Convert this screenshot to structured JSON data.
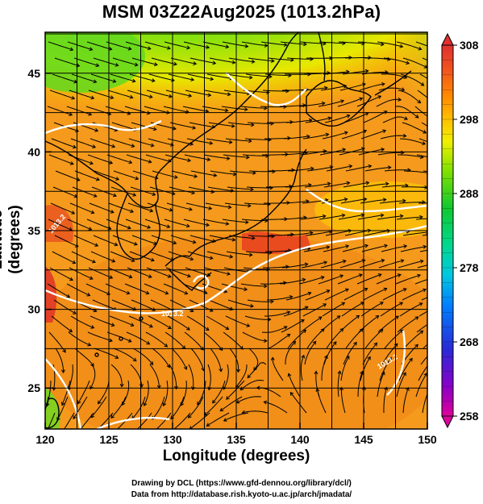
{
  "title": "MSM 03Z22Aug2025 (1013.2hPa)",
  "chart_data": {
    "type": "heatmap",
    "title": "MSM 03Z22Aug2025 (1013.2hPa)",
    "xlabel": "Longitude (degrees)",
    "ylabel": "Latitude  (degrees)",
    "xlim": [
      120,
      150
    ],
    "ylim": [
      22.4,
      47.6
    ],
    "x_ticks": [
      "120",
      "125",
      "130",
      "135",
      "140",
      "145",
      "150"
    ],
    "y_ticks": [
      "25",
      "30",
      "35",
      "40",
      "45"
    ],
    "colorbar": {
      "min": 258,
      "max": 308,
      "ticks": [
        "308",
        "298",
        "288",
        "278",
        "268",
        "258"
      ],
      "colors": [
        "#e0009a",
        "#8a00c8",
        "#2a2ad8",
        "#0080ff",
        "#00c8e0",
        "#00d890",
        "#10c830",
        "#80e000",
        "#f0f000",
        "#ffc000",
        "#ff8c00",
        "#f05020",
        "#e03030"
      ]
    },
    "contour_labels": [
      "1013.2",
      "1013.2",
      "1013.2"
    ],
    "grid": true,
    "overlays": [
      "streamlines",
      "coastlines",
      "pressure contour 1013.2 hPa"
    ]
  },
  "credits": {
    "line1": "Drawing by DCL (https://www.gfd-dennou.org/library/dcl/)",
    "line2": "Data from http://database.rish.kyoto-u.ac.jp/arch/jmadata/"
  }
}
